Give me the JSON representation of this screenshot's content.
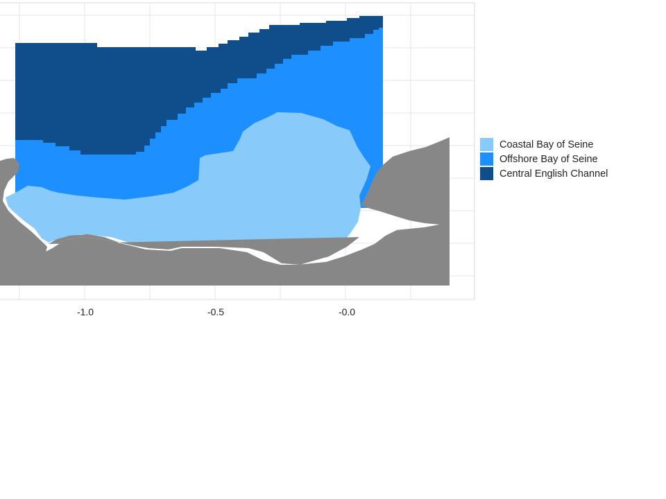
{
  "map": {
    "x_ticks": [
      "-1.0",
      "-0.5",
      "-0.0"
    ],
    "grid": true,
    "colors": {
      "land": "#878787",
      "coastal": "#88CBFA",
      "offshore": "#1E8FFF",
      "central": "#104E8B",
      "grid": "#E6E6E6",
      "panel_border": "#D9D9D9"
    }
  },
  "legend": {
    "position": "right",
    "items": [
      {
        "label": "Coastal Bay of Seine",
        "color": "#88CBFA"
      },
      {
        "label": "Offshore Bay of Seine",
        "color": "#1E8FFF"
      },
      {
        "label": "Central English Channel",
        "color": "#104E8B"
      }
    ]
  }
}
